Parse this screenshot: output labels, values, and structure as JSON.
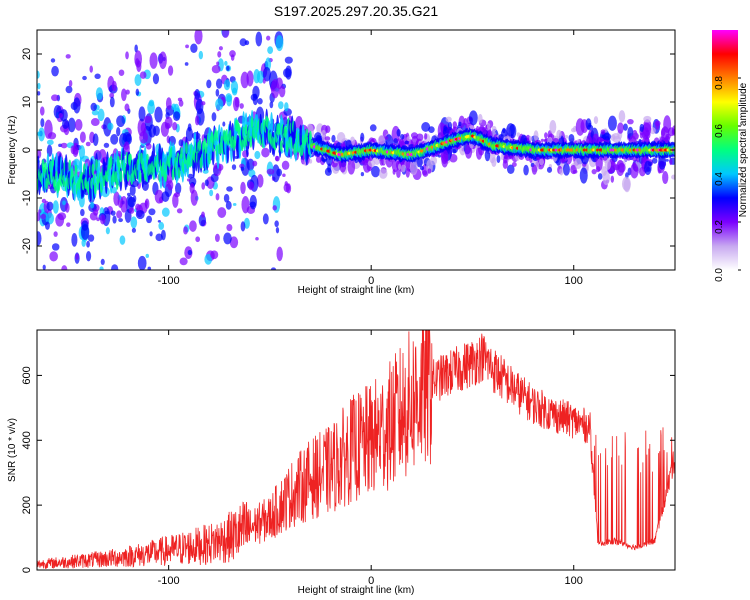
{
  "title": "S197.2025.297.20.35.G21",
  "chart_data": [
    {
      "type": "heatmap",
      "title": "S197.2025.297.20.35.G21",
      "xlabel": "Height of straight line (km)",
      "ylabel": "Frequency (Hz)",
      "xlim": [
        -165,
        150
      ],
      "ylim": [
        -25,
        25
      ],
      "xticks": [
        -100,
        0,
        100
      ],
      "yticks": [
        -20,
        -10,
        0,
        10,
        20
      ],
      "colorbar": {
        "label": "Normalized spectral amplitude",
        "range": [
          0,
          1
        ],
        "ticks": [
          "0.0",
          "0.2",
          "0.4",
          "0.6",
          "0.8"
        ],
        "colors": [
          "#ffffff",
          "#c7a8f0",
          "#7b00ff",
          "#0000ff",
          "#00c8ff",
          "#00ff80",
          "#66ff00",
          "#ffff00",
          "#ff8000",
          "#ff0000",
          "#ff00ff"
        ]
      },
      "ridge": {
        "x": [
          -165,
          -140,
          -120,
          -100,
          -80,
          -65,
          -55,
          -40,
          -30,
          -15,
          0,
          20,
          40,
          50,
          60,
          80,
          100,
          120,
          150
        ],
        "frequency": [
          -5,
          -6,
          -4,
          -3,
          0,
          3,
          4,
          3,
          1,
          -1,
          0,
          -1,
          2,
          3,
          1,
          0,
          0,
          0,
          0
        ]
      }
    },
    {
      "type": "line",
      "xlabel": "Height of straight line (km)",
      "ylabel": "SNR (10 * v/v)",
      "xlim": [
        -165,
        150
      ],
      "ylim": [
        0,
        740
      ],
      "xticks": [
        -100,
        0,
        100
      ],
      "yticks": [
        0,
        200,
        400,
        600
      ],
      "color": "#ee2222",
      "series": [
        {
          "name": "SNR",
          "x": [
            -165,
            -150,
            -130,
            -110,
            -100,
            -80,
            -70,
            -60,
            -50,
            -40,
            -30,
            -20,
            -10,
            0,
            10,
            20,
            30,
            40,
            50,
            55,
            60,
            70,
            80,
            90,
            100,
            108,
            112,
            120,
            130,
            140,
            150
          ],
          "values": [
            18,
            25,
            35,
            50,
            60,
            80,
            100,
            130,
            160,
            230,
            280,
            310,
            370,
            400,
            450,
            520,
            580,
            610,
            640,
            660,
            620,
            560,
            510,
            480,
            460,
            440,
            80,
            90,
            70,
            90,
            350
          ]
        }
      ]
    }
  ]
}
